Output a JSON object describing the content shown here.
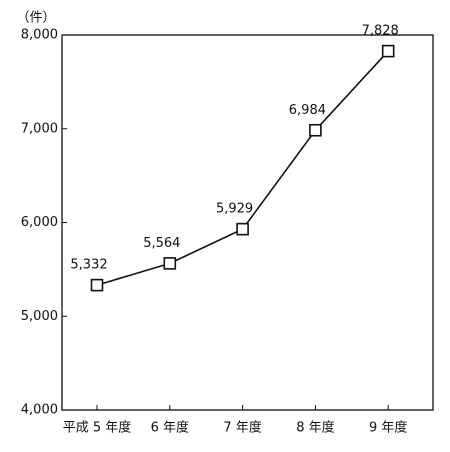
{
  "chart_data": {
    "type": "line",
    "y_label": "（件）",
    "categories": [
      "平成 5 年度",
      "6 年度",
      "7 年度",
      "8 年度",
      "9 年度"
    ],
    "values": [
      5332,
      5564,
      5929,
      6984,
      7828
    ],
    "value_labels": [
      "5,332",
      "5,564",
      "5,929",
      "6,984",
      "7,828"
    ],
    "color": "#111111",
    "ylim": [
      4000,
      8000
    ],
    "yticks": [
      {
        "value": 4000,
        "label": "4,000"
      },
      {
        "value": 5000,
        "label": "5,000"
      },
      {
        "value": 6000,
        "label": "6,000"
      },
      {
        "value": 7000,
        "label": "7,000"
      },
      {
        "value": 8000,
        "label": "8,000"
      }
    ],
    "grid": false
  }
}
